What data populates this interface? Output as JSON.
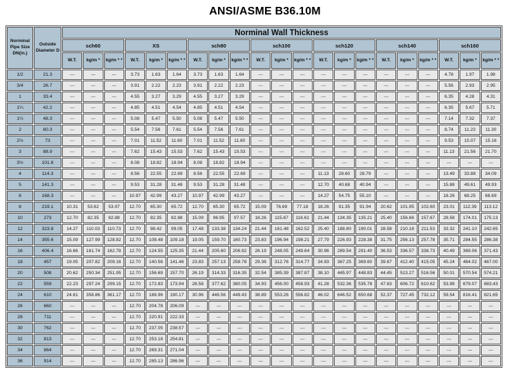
{
  "title": "ANSI/ASME B36.10M",
  "colors": {
    "header_bg": "#b0c4d2",
    "cell_bg": "#e9e9e9",
    "border": "#4a4a4a",
    "page_bg": "#ffffff"
  },
  "table": {
    "header": {
      "main": "Norminal Wall Thickness",
      "col1": "Norminal Pipe Size DN(in.)",
      "col2": "Outside Diameter D",
      "groups": [
        "sch60",
        "XS",
        "sch80",
        "sch100",
        "sch120",
        "sch140",
        "sch160"
      ],
      "sub": [
        "W.T.",
        "kg/m *",
        "kg/m * *"
      ]
    },
    "empty_marker": "---",
    "rows": [
      {
        "dn": "1/2",
        "od": "21.3",
        "v": [
          "---",
          "---",
          "---",
          "3.73",
          "1.63",
          "1.64",
          "3.73",
          "1.63",
          "1.64",
          "---",
          "---",
          "---",
          "---",
          "---",
          "---",
          "---",
          "---",
          "---",
          "4.78",
          "1.97",
          "1.98"
        ]
      },
      {
        "dn": "3/4",
        "od": "26.7",
        "v": [
          "---",
          "---",
          "---",
          "3.91",
          "2.22",
          "2.23",
          "3.91",
          "2.22",
          "2.23",
          "---",
          "---",
          "---",
          "---",
          "---",
          "---",
          "---",
          "---",
          "---",
          "5.56",
          "2.93",
          "2.95"
        ]
      },
      {
        "dn": "1",
        "od": "33.4",
        "v": [
          "---",
          "---",
          "---",
          "4.55",
          "3.27",
          "3.29",
          "4.55",
          "3.27",
          "3.29",
          "---",
          "---",
          "---",
          "---",
          "---",
          "---",
          "---",
          "---",
          "---",
          "6.35",
          "4.28",
          "4.31"
        ]
      },
      {
        "dn": "1¼",
        "od": "42.2",
        "v": [
          "---",
          "---",
          "---",
          "4.85",
          "4.51",
          "4.54",
          "4.85",
          "4.51",
          "4.54",
          "---",
          "---",
          "---",
          "---",
          "---",
          "---",
          "---",
          "---",
          "---",
          "6.35",
          "5.67",
          "5.71"
        ]
      },
      {
        "dn": "1½",
        "od": "48.3",
        "v": [
          "---",
          "---",
          "---",
          "5.08",
          "5.47",
          "5.50",
          "5.08",
          "5.47",
          "5.50",
          "---",
          "---",
          "---",
          "---",
          "---",
          "---",
          "---",
          "---",
          "---",
          "7.14",
          "7.32",
          "7.37"
        ]
      },
      {
        "dn": "2",
        "od": "60.3",
        "v": [
          "---",
          "---",
          "---",
          "5.54",
          "7.56",
          "7.61",
          "5.54",
          "7.56",
          "7.61",
          "---",
          "---",
          "---",
          "---",
          "---",
          "---",
          "---",
          "---",
          "---",
          "8.74",
          "11.23",
          "11.30"
        ]
      },
      {
        "dn": "2½",
        "od": "73",
        "v": [
          "---",
          "---",
          "---",
          "7.01",
          "11.52",
          "11.60",
          "7.01",
          "11.52",
          "11.60",
          "---",
          "---",
          "---",
          "---",
          "---",
          "---",
          "---",
          "---",
          "---",
          "9.53",
          "15.07",
          "15.16"
        ]
      },
      {
        "dn": "3",
        "od": "88.9",
        "v": [
          "---",
          "---",
          "---",
          "7.62",
          "15.43",
          "15.53",
          "7.62",
          "15.43",
          "15.53",
          "---",
          "---",
          "---",
          "---",
          "---",
          "---",
          "---",
          "---",
          "---",
          "11.13",
          "21.56",
          "21.70"
        ]
      },
      {
        "dn": "3½",
        "od": "101.6",
        "v": [
          "---",
          "---",
          "---",
          "8.08",
          "18.82",
          "18.94",
          "8.08",
          "18.82",
          "18.94",
          "---",
          "---",
          "---",
          "---",
          "---",
          "---",
          "---",
          "---",
          "---",
          "---",
          "---",
          "---"
        ]
      },
      {
        "dn": "4",
        "od": "114.3",
        "v": [
          "---",
          "---",
          "---",
          "8.56",
          "22.55",
          "22.69",
          "8.56",
          "22.55",
          "22.69",
          "---",
          "---",
          "---",
          "11.13",
          "28.60",
          "28.79",
          "---",
          "---",
          "---",
          "13.49",
          "33.88",
          "34.09"
        ]
      },
      {
        "dn": "5",
        "od": "141.3",
        "v": [
          "---",
          "---",
          "---",
          "9.53",
          "31.28",
          "31.48",
          "9.53",
          "31.28",
          "31.48",
          "---",
          "---",
          "---",
          "12.70",
          "40.68",
          "40.94",
          "---",
          "---",
          "---",
          "15.88",
          "49.61",
          "49.93"
        ]
      },
      {
        "dn": "6",
        "od": "168.3",
        "v": [
          "---",
          "---",
          "---",
          "10.97",
          "42.99",
          "43.27",
          "10.97",
          "42.99",
          "43.27",
          "---",
          "---",
          "---",
          "14.27",
          "54.75",
          "55.10",
          "---",
          "---",
          "---",
          "18.26",
          "68.25",
          "68.69"
        ]
      },
      {
        "dn": "8",
        "od": "219.1",
        "v": [
          "10.31",
          "53.62",
          "53.97",
          "12.70",
          "65.30",
          "65.72",
          "12.70",
          "65.30",
          "65.72",
          "15.09",
          "76.69",
          "77.18",
          "18.26",
          "91.35",
          "91.94",
          "20.62",
          "101.95",
          "102.60",
          "23.01",
          "112.39",
          "113.12"
        ]
      },
      {
        "dn": "10",
        "od": "273",
        "v": [
          "12.70",
          "82.35",
          "82.88",
          "12.70",
          "82.35",
          "82.88",
          "15.09",
          "96.95",
          "97.57",
          "18.26",
          "115.87",
          "116.61",
          "21.44",
          "134.35",
          "135.21",
          "25.40",
          "156.66",
          "157.67",
          "28.58",
          "174.01",
          "175.13"
        ]
      },
      {
        "dn": "12",
        "od": "323.8",
        "v": [
          "14.27",
          "110.03",
          "110.73",
          "12.70",
          "98.42",
          "99.05",
          "17.48",
          "133.38",
          "134.24",
          "21.44",
          "161.48",
          "162.52",
          "25.40",
          "188.80",
          "190.01",
          "28.58",
          "210.18",
          "211.53",
          "33.32",
          "241.10",
          "242.65"
        ]
      },
      {
        "dn": "14",
        "od": "355.6",
        "v": [
          "15.09",
          "127.99",
          "128.82",
          "12.70",
          "108.48",
          "109.18",
          "19.05",
          "159.70",
          "160.73",
          "23.83",
          "196.94",
          "198.21",
          "27.79",
          "226.93",
          "228.38",
          "31.75",
          "256.13",
          "257.78",
          "35.71",
          "284.55",
          "286.38"
        ]
      },
      {
        "dn": "16",
        "od": "406.4",
        "v": [
          "16.66",
          "161.74",
          "162.78",
          "12.70",
          "124.55",
          "125.35",
          "21.44",
          "205.60",
          "206.92",
          "26.19",
          "248.05",
          "249.64",
          "30.96",
          "289.54",
          "291.40",
          "36.53",
          "336.57",
          "338.73",
          "40.49",
          "369.06",
          "371.43"
        ]
      },
      {
        "dn": "18",
        "od": "457",
        "v": [
          "19.05",
          "207.82",
          "209.16",
          "12.70",
          "140.56",
          "141.46",
          "23.83",
          "257.13",
          "258.78",
          "29.36",
          "312.76",
          "314.77",
          "34.93",
          "367.25",
          "369.60",
          "39.67",
          "412.40",
          "415.05",
          "45.24",
          "464.02",
          "467.00"
        ]
      },
      {
        "dn": "20",
        "od": "508",
        "v": [
          "20.62",
          "250.34",
          "251.95",
          "12.70",
          "156.69",
          "157.70",
          "26.19",
          "314.33",
          "316.35",
          "32.54",
          "385.39",
          "387.87",
          "38.10",
          "445.97",
          "448.83",
          "44.45",
          "513.27",
          "516.56",
          "50.01",
          "570.54",
          "574.21"
        ]
      },
      {
        "dn": "22",
        "od": "559",
        "v": [
          "22.23",
          "297.24",
          "299.15",
          "12.70",
          "172.83",
          "173.94",
          "28.58",
          "377.62",
          "380.05",
          "34.93",
          "456.00",
          "458.93",
          "41.28",
          "532.36",
          "535.78",
          "47.63",
          "606.72",
          "610.62",
          "53.98",
          "679.07",
          "683.43"
        ]
      },
      {
        "dn": "24",
        "od": "610",
        "v": [
          "24.61",
          "358.86",
          "361.17",
          "12.70",
          "188.96",
          "190.17",
          "30.96",
          "446.56",
          "449.43",
          "38.89",
          "553.26",
          "556.82",
          "46.02",
          "646.52",
          "650.68",
          "52.37",
          "727.45",
          "732.12",
          "59.54",
          "816.41",
          "821.65"
        ]
      },
      {
        "dn": "26",
        "od": "660",
        "v": [
          "---",
          "---",
          "---",
          "12.70",
          "204.78",
          "206.09",
          "---",
          "---",
          "---",
          "---",
          "---",
          "---",
          "---",
          "---",
          "---",
          "---",
          "---",
          "---",
          "---",
          "---",
          "---"
        ]
      },
      {
        "dn": "28",
        "od": "711",
        "v": [
          "---",
          "---",
          "---",
          "12.70",
          "220.91",
          "222.33",
          "---",
          "---",
          "---",
          "---",
          "---",
          "---",
          "---",
          "---",
          "---",
          "---",
          "---",
          "---",
          "---",
          "---",
          "---"
        ]
      },
      {
        "dn": "30",
        "od": "762",
        "v": [
          "---",
          "---",
          "---",
          "12.70",
          "237.05",
          "238.57",
          "---",
          "---",
          "---",
          "---",
          "---",
          "---",
          "---",
          "---",
          "---",
          "---",
          "---",
          "---",
          "---",
          "---",
          "---"
        ]
      },
      {
        "dn": "32",
        "od": "813",
        "v": [
          "---",
          "---",
          "---",
          "12.70",
          "253.18",
          "254.81",
          "---",
          "---",
          "---",
          "---",
          "---",
          "---",
          "---",
          "---",
          "---",
          "---",
          "---",
          "---",
          "---",
          "---",
          "---"
        ]
      },
      {
        "dn": "34",
        "od": "864",
        "v": [
          "---",
          "---",
          "---",
          "12.70",
          "269.31",
          "271.04",
          "---",
          "---",
          "---",
          "---",
          "---",
          "---",
          "---",
          "---",
          "---",
          "---",
          "---",
          "---",
          "---",
          "---",
          "---"
        ]
      },
      {
        "dn": "36",
        "od": "914",
        "v": [
          "---",
          "---",
          "---",
          "12.70",
          "285.13",
          "286.96",
          "---",
          "---",
          "---",
          "---",
          "---",
          "---",
          "---",
          "---",
          "---",
          "---",
          "---",
          "---",
          "---",
          "---",
          "---"
        ]
      }
    ]
  }
}
